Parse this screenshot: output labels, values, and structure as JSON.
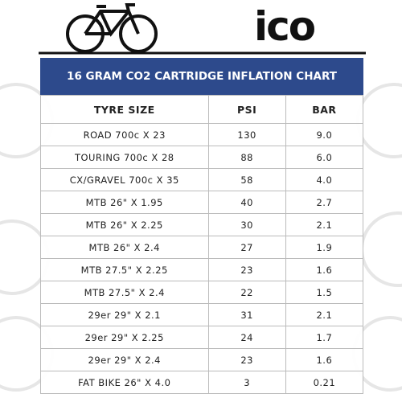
{
  "header": {
    "logo": "ico"
  },
  "title": "16 GRAM CO2 CARTRIDGE INFLATION CHART",
  "table": {
    "columns": [
      "TYRE SIZE",
      "PSI",
      "BAR"
    ],
    "rows": [
      [
        "ROAD 700c X 23",
        "130",
        "9.0"
      ],
      [
        "TOURING 700c X 28",
        "88",
        "6.0"
      ],
      [
        "CX/GRAVEL 700c X 35",
        "58",
        "4.0"
      ],
      [
        "MTB 26\" X 1.95",
        "40",
        "2.7"
      ],
      [
        "MTB 26\" X 2.25",
        "30",
        "2.1"
      ],
      [
        "MTB 26\" X 2.4",
        "27",
        "1.9"
      ],
      [
        "MTB 27.5\" X 2.25",
        "23",
        "1.6"
      ],
      [
        "MTB 27.5\" X 2.4",
        "22",
        "1.5"
      ],
      [
        "29er 29\" X 2.1",
        "31",
        "2.1"
      ],
      [
        "29er 29\" X 2.25",
        "24",
        "1.7"
      ],
      [
        "29er 29\" X 2.4",
        "23",
        "1.6"
      ],
      [
        "FAT BIKE 26\" X 4.0",
        "3",
        "0.21"
      ]
    ]
  }
}
